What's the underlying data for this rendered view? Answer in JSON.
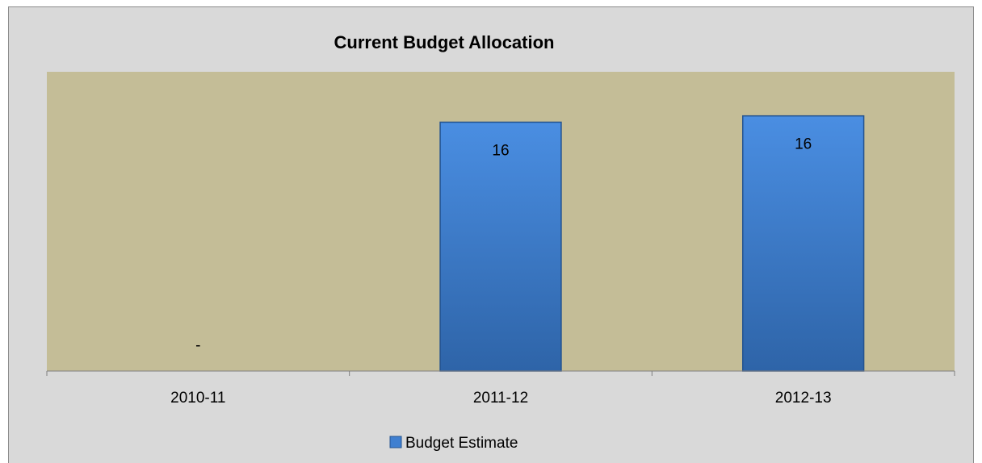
{
  "chart_data": {
    "type": "bar",
    "title": "Current Budget Allocation",
    "xlabel": "",
    "ylabel": "",
    "categories": [
      "2010-11",
      "2011-12",
      "2012-13"
    ],
    "series": [
      {
        "name": "Budget Estimate",
        "values": [
          0,
          15.8,
          16.2
        ],
        "data_labels": [
          "-",
          "16",
          "16"
        ],
        "color": "#3f7fd0"
      }
    ],
    "ylim": [
      0,
      19
    ],
    "grid": false,
    "legend": "bottom",
    "plot_background": "#c4bd97",
    "chart_background": "#d9d9d9"
  }
}
